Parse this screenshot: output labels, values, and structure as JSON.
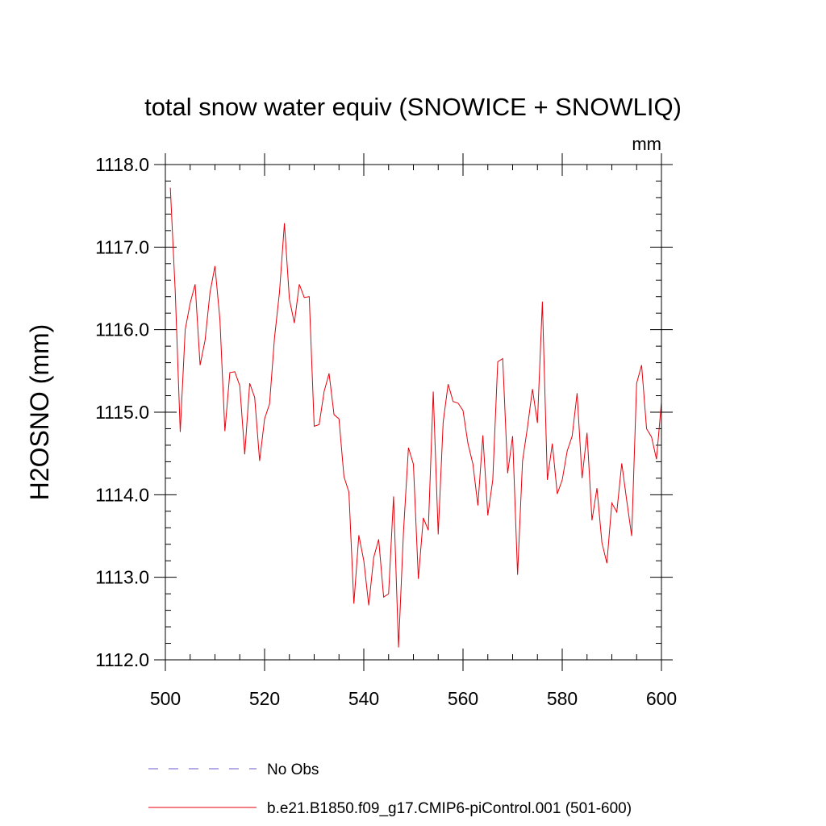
{
  "chart_data": {
    "type": "line",
    "title": "total snow water equiv (SNOWICE + SNOWLIQ)",
    "units": "mm",
    "xlabel": "",
    "ylabel": "H2OSNO  (mm)",
    "xlim": [
      500,
      600
    ],
    "ylim": [
      1112.0,
      1118.0
    ],
    "x_ticks": [
      500,
      520,
      540,
      560,
      580,
      600
    ],
    "x_tick_labels": [
      "500",
      "520",
      "540",
      "560",
      "580",
      "600"
    ],
    "y_ticks": [
      1112.0,
      1113.0,
      1114.0,
      1115.0,
      1116.0,
      1117.0,
      1118.0
    ],
    "y_tick_labels": [
      "1112.0",
      "1113.0",
      "1114.0",
      "1115.0",
      "1116.0",
      "1117.0",
      "1118.0"
    ],
    "colors": {
      "model": "#e8000b",
      "obs": "#6a5acd",
      "axis": "#000000"
    },
    "legend": [
      {
        "label": "No Obs",
        "style": "dashed",
        "color": "#6a5acd"
      },
      {
        "label": "b.e21.B1850.f09_g17.CMIP6-piControl.001 (501-600)",
        "style": "solid",
        "color": "#e8000b"
      }
    ],
    "series": [
      {
        "name": "b.e21.B1850.f09_g17.CMIP6-piControl.001 (501-600)",
        "x": [
          501,
          502,
          503,
          504,
          505,
          506,
          507,
          508,
          509,
          510,
          511,
          512,
          513,
          514,
          515,
          516,
          517,
          518,
          519,
          520,
          521,
          522,
          523,
          524,
          525,
          526,
          527,
          528,
          529,
          530,
          531,
          532,
          533,
          534,
          535,
          536,
          537,
          538,
          539,
          540,
          541,
          542,
          543,
          544,
          545,
          546,
          547,
          548,
          549,
          550,
          551,
          552,
          553,
          554,
          555,
          556,
          557,
          558,
          559,
          560,
          561,
          562,
          563,
          564,
          565,
          566,
          567,
          568,
          569,
          570,
          571,
          572,
          573,
          574,
          575,
          576,
          577,
          578,
          579,
          580,
          581,
          582,
          583,
          584,
          585,
          586,
          587,
          588,
          589,
          590,
          591,
          592,
          593,
          594,
          595,
          596,
          597,
          598,
          599,
          600
        ],
        "values": [
          1117.72,
          1116.45,
          1114.76,
          1116.0,
          1116.32,
          1116.55,
          1115.57,
          1115.87,
          1116.45,
          1116.77,
          1116.12,
          1114.77,
          1115.48,
          1115.49,
          1115.32,
          1114.49,
          1115.35,
          1115.18,
          1114.41,
          1114.92,
          1115.1,
          1115.9,
          1116.45,
          1117.29,
          1116.37,
          1116.08,
          1116.55,
          1116.39,
          1116.4,
          1114.83,
          1114.85,
          1115.25,
          1115.47,
          1114.97,
          1114.92,
          1114.22,
          1114.03,
          1112.68,
          1113.51,
          1113.2,
          1112.66,
          1113.24,
          1113.46,
          1112.76,
          1112.8,
          1113.98,
          1112.15,
          1113.55,
          1114.57,
          1114.37,
          1112.98,
          1113.72,
          1113.57,
          1115.25,
          1113.52,
          1114.88,
          1115.34,
          1115.13,
          1115.11,
          1115.02,
          1114.62,
          1114.37,
          1113.87,
          1114.72,
          1113.75,
          1114.18,
          1115.61,
          1115.65,
          1114.26,
          1114.71,
          1113.03,
          1114.41,
          1114.82,
          1115.28,
          1114.87,
          1116.34,
          1114.18,
          1114.62,
          1114.01,
          1114.18,
          1114.53,
          1114.71,
          1115.23,
          1114.2,
          1114.75,
          1113.69,
          1114.08,
          1113.42,
          1113.17,
          1113.9,
          1113.79,
          1114.38,
          1113.93,
          1113.5,
          1115.35,
          1115.57,
          1114.8,
          1114.7,
          1114.43,
          1115.12
        ]
      }
    ]
  }
}
